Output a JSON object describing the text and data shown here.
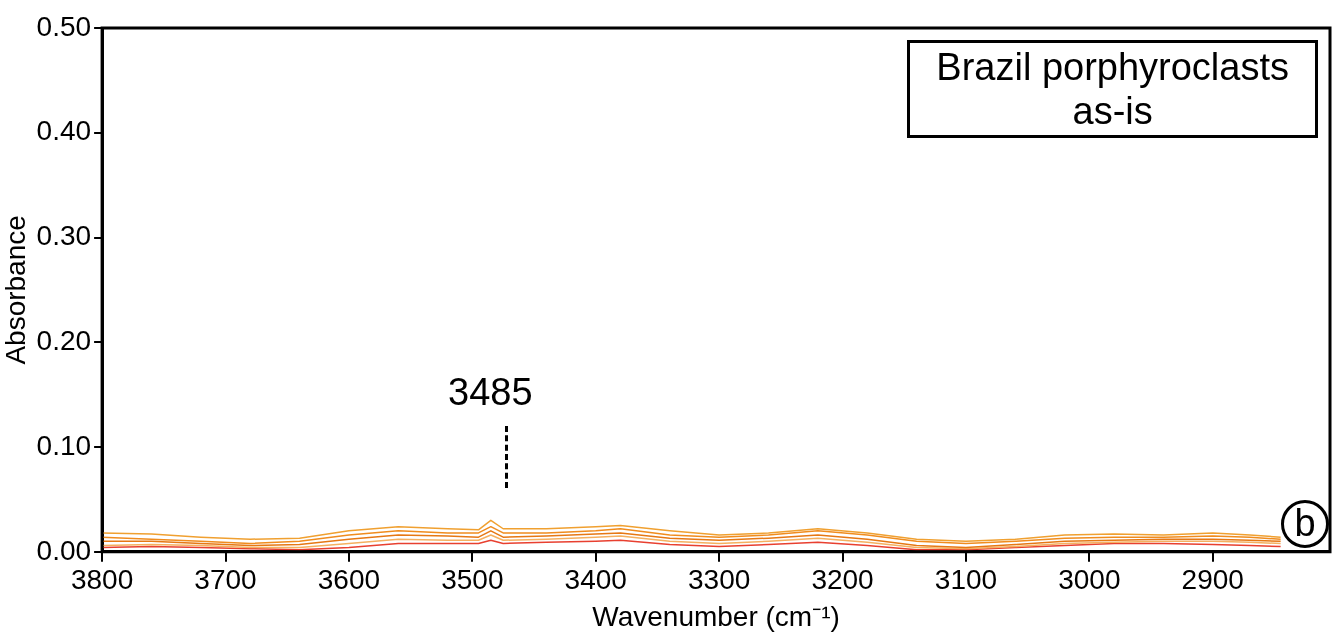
{
  "chart_data": {
    "type": "line",
    "title": "Brazil porphyroclasts",
    "subtitle": "as-is",
    "xlabel": "Wavenumber (cm⁻¹)",
    "ylabel": "Absorbance",
    "x": [
      3800,
      3760,
      3720,
      3680,
      3640,
      3600,
      3560,
      3520,
      3495,
      3485,
      3475,
      3440,
      3400,
      3380,
      3340,
      3300,
      3260,
      3220,
      3180,
      3140,
      3100,
      3060,
      3020,
      2980,
      2940,
      2900,
      2870,
      2845
    ],
    "series": [
      {
        "color": "#f0a030",
        "values": [
          0.018,
          0.017,
          0.014,
          0.012,
          0.013,
          0.02,
          0.024,
          0.022,
          0.021,
          0.03,
          0.022,
          0.022,
          0.024,
          0.025,
          0.02,
          0.016,
          0.018,
          0.022,
          0.018,
          0.012,
          0.01,
          0.012,
          0.016,
          0.017,
          0.016,
          0.018,
          0.016,
          0.014
        ]
      },
      {
        "color": "#f08c1e",
        "values": [
          0.014,
          0.012,
          0.01,
          0.008,
          0.01,
          0.016,
          0.02,
          0.018,
          0.018,
          0.024,
          0.018,
          0.018,
          0.02,
          0.022,
          0.016,
          0.014,
          0.016,
          0.02,
          0.016,
          0.01,
          0.008,
          0.01,
          0.013,
          0.014,
          0.014,
          0.015,
          0.014,
          0.012
        ]
      },
      {
        "color": "#e67814",
        "values": [
          0.01,
          0.01,
          0.008,
          0.006,
          0.007,
          0.012,
          0.016,
          0.015,
          0.014,
          0.02,
          0.014,
          0.015,
          0.017,
          0.018,
          0.013,
          0.011,
          0.013,
          0.016,
          0.012,
          0.006,
          0.004,
          0.007,
          0.01,
          0.011,
          0.012,
          0.012,
          0.011,
          0.01
        ]
      },
      {
        "color": "#f5b060",
        "values": [
          0.006,
          0.007,
          0.006,
          0.004,
          0.004,
          0.008,
          0.012,
          0.011,
          0.011,
          0.016,
          0.011,
          0.012,
          0.014,
          0.015,
          0.01,
          0.008,
          0.01,
          0.013,
          0.009,
          0.004,
          0.003,
          0.005,
          0.008,
          0.009,
          0.01,
          0.01,
          0.009,
          0.008
        ]
      },
      {
        "color": "#e84030",
        "values": [
          0.004,
          0.005,
          0.004,
          0.003,
          0.002,
          0.004,
          0.008,
          0.008,
          0.008,
          0.011,
          0.008,
          0.009,
          0.01,
          0.011,
          0.007,
          0.005,
          0.007,
          0.009,
          0.006,
          0.002,
          0.002,
          0.004,
          0.006,
          0.008,
          0.008,
          0.007,
          0.006,
          0.005
        ]
      }
    ],
    "xlim": [
      3800,
      2805
    ],
    "xticks": [
      3800,
      3700,
      3600,
      3500,
      3400,
      3300,
      3200,
      3100,
      3000,
      2900
    ],
    "ylim": [
      0,
      0.5
    ],
    "yticks": [
      {
        "value": 0,
        "label": "0.00"
      },
      {
        "value": 0.1,
        "label": "0.10"
      },
      {
        "value": 0.2,
        "label": "0.20"
      },
      {
        "value": 0.3,
        "label": "0.30"
      },
      {
        "value": 0.4,
        "label": "0.40"
      },
      {
        "value": 0.5,
        "label": "0.50"
      }
    ],
    "annotations": [
      "3485",
      "b"
    ],
    "grid": false,
    "legend": false,
    "marker": "none",
    "line_style": "solid"
  }
}
